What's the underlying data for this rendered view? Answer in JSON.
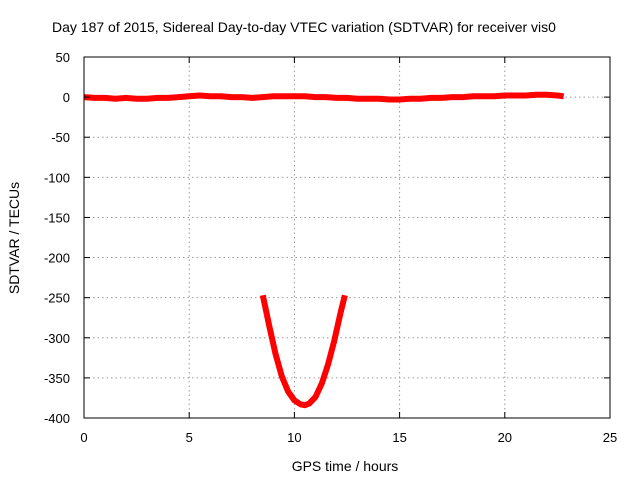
{
  "chart_data": {
    "type": "line",
    "title": "Day 187 of 2015, Sidereal Day-to-day VTEC variation (SDTVAR) for receiver vis0",
    "xlabel": "GPS time / hours",
    "ylabel": "SDTVAR / TECUs",
    "xlim": [
      0,
      25
    ],
    "ylim": [
      -400,
      50
    ],
    "x_ticks": [
      "0",
      "5",
      "10",
      "15",
      "20",
      "25"
    ],
    "y_ticks": [
      "50",
      "0",
      "-50",
      "-100",
      "-150",
      "-200",
      "-250",
      "-300",
      "-350",
      "-400"
    ],
    "grid": true,
    "line_color": "#ff0000",
    "series": [
      {
        "x": [
          0,
          0.5,
          1,
          1.5,
          2,
          2.5,
          3,
          3.5,
          4,
          4.5,
          5,
          5.5,
          6,
          6.5,
          7,
          7.5,
          8,
          8.5,
          9,
          9.5,
          10,
          10.5,
          11,
          11.5,
          12,
          12.5,
          13,
          13.5,
          14,
          14.5,
          15,
          15.5,
          16,
          16.5,
          17,
          17.5,
          18,
          18.5,
          19,
          19.5,
          20,
          20.5,
          21,
          21.5,
          22,
          22.5,
          22.8
        ],
        "y": [
          0,
          -1,
          -1,
          -2,
          -1,
          -2,
          -2,
          -1,
          -1,
          0,
          1,
          2,
          1,
          1,
          0,
          0,
          -1,
          0,
          1,
          1,
          1,
          1,
          0,
          0,
          -1,
          -1,
          -2,
          -2,
          -2,
          -3,
          -3,
          -2,
          -2,
          -1,
          -1,
          0,
          0,
          1,
          1,
          1,
          2,
          2,
          2,
          3,
          3,
          2,
          1
        ]
      },
      {
        "x": [
          8.5,
          8.8,
          9.1,
          9.4,
          9.7,
          10.0,
          10.3,
          10.5,
          10.7,
          11.0,
          11.3,
          11.6,
          11.9,
          12.2,
          12.4
        ],
        "y": [
          -247,
          -285,
          -320,
          -348,
          -367,
          -378,
          -383,
          -384,
          -382,
          -374,
          -357,
          -333,
          -303,
          -268,
          -247
        ]
      }
    ]
  }
}
